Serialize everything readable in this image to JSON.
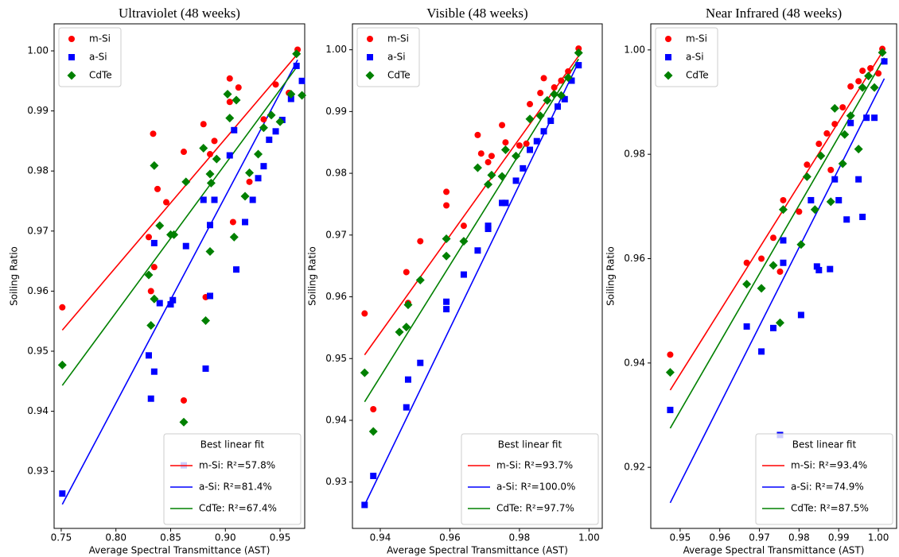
{
  "chart_data": [
    {
      "type": "scatter",
      "title": "Ultraviolet (48 weeks)",
      "xlabel": "Average Spectral Transmittance (AST)",
      "ylabel": "Soiling Ratio",
      "xlim": [
        0.7435,
        0.9725
      ],
      "ylim": [
        0.9205,
        1.0045
      ],
      "xticks": [
        0.75,
        {
          "value": 0.8,
          "label": "0.80"
        },
        0.85,
        {
          "value": 0.9,
          "label": "0.90"
        },
        0.95
      ],
      "yticks": [
        0.93,
        0.94,
        0.95,
        0.96,
        0.97,
        0.98,
        0.99,
        {
          "value": 1.0,
          "label": "1.00"
        }
      ],
      "series": [
        {
          "name": "m-Si",
          "color": "#ff0000",
          "marker": "circle",
          "x": [
            0.751,
            0.83,
            0.832,
            0.834,
            0.835,
            0.838,
            0.846,
            0.862,
            0.862,
            0.88,
            0.882,
            0.886,
            0.89,
            0.904,
            0.904,
            0.907,
            0.912,
            0.922,
            0.935,
            0.946,
            0.958,
            0.966
          ],
          "values": [
            0.9573,
            0.969,
            0.96,
            0.9862,
            0.964,
            0.977,
            0.9748,
            0.9418,
            0.9832,
            0.9878,
            0.959,
            0.9828,
            0.985,
            0.9954,
            0.9915,
            0.9715,
            0.9939,
            0.9782,
            0.9886,
            0.9944,
            0.993,
            1.0002
          ]
        },
        {
          "name": "a-Si",
          "color": "#0000ff",
          "marker": "square",
          "x": [
            0.751,
            0.83,
            0.832,
            0.835,
            0.835,
            0.84,
            0.85,
            0.852,
            0.862,
            0.864,
            0.88,
            0.882,
            0.886,
            0.886,
            0.89,
            0.904,
            0.908,
            0.91,
            0.918,
            0.925,
            0.93,
            0.935,
            0.94,
            0.946,
            0.952,
            0.96,
            0.965,
            0.97
          ],
          "values": [
            0.9263,
            0.9493,
            0.9421,
            0.9466,
            0.968,
            0.958,
            0.9578,
            0.9585,
            0.931,
            0.9675,
            0.9752,
            0.9471,
            0.9592,
            0.971,
            0.9752,
            0.9826,
            0.9868,
            0.9636,
            0.9715,
            0.9752,
            0.9788,
            0.9808,
            0.9852,
            0.9866,
            0.9885,
            0.992,
            0.9975,
            0.995
          ]
        },
        {
          "name": "CdTe",
          "color": "#008000",
          "marker": "diamond",
          "x": [
            0.751,
            0.83,
            0.832,
            0.835,
            0.835,
            0.84,
            0.85,
            0.853,
            0.862,
            0.864,
            0.88,
            0.882,
            0.886,
            0.886,
            0.887,
            0.892,
            0.902,
            0.904,
            0.908,
            0.91,
            0.918,
            0.922,
            0.93,
            0.935,
            0.942,
            0.95,
            0.96,
            0.965,
            0.97
          ],
          "values": [
            0.9477,
            0.9627,
            0.9543,
            0.9809,
            0.9587,
            0.9709,
            0.9694,
            0.9694,
            0.9382,
            0.9782,
            0.9838,
            0.9551,
            0.9666,
            0.9795,
            0.978,
            0.982,
            0.9928,
            0.9888,
            0.969,
            0.9918,
            0.9758,
            0.9797,
            0.9828,
            0.9872,
            0.9893,
            0.9882,
            0.9928,
            0.9995,
            0.9926
          ]
        }
      ],
      "fit": {
        "title": "Best linear fit",
        "lines": [
          {
            "name": "m-Si: R²=57.8%",
            "color": "#ff0000",
            "x": [
              0.751,
              0.966
            ],
            "values": [
              0.9535,
              0.9995
            ]
          },
          {
            "name": "a-Si: R²=81.4%",
            "color": "#0000ff",
            "x": [
              0.751,
              0.966
            ],
            "values": [
              0.9245,
              0.9985
            ]
          },
          {
            "name": "CdTe: R²=67.4%",
            "color": "#008000",
            "x": [
              0.751,
              0.966
            ],
            "values": [
              0.9443,
              0.9975
            ]
          }
        ]
      }
    },
    {
      "type": "scatter",
      "title": "Visible (48 weeks)",
      "xlabel": "Average Spectral Transmittance (AST)",
      "ylabel": "Soiling Ratio",
      "xlim": [
        0.932,
        1.0038
      ],
      "ylim": [
        0.9225,
        1.0042
      ],
      "xticks": [
        0.94,
        0.96,
        0.98,
        {
          "value": 1.0,
          "label": "1.00"
        }
      ],
      "yticks": [
        0.93,
        0.94,
        0.95,
        0.96,
        0.97,
        0.98,
        0.99,
        {
          "value": 1.0,
          "label": "1.00"
        }
      ],
      "series": [
        {
          "name": "m-Si",
          "color": "#ff0000",
          "marker": "circle",
          "x": [
            0.9355,
            0.938,
            0.9475,
            0.948,
            0.9515,
            0.959,
            0.959,
            0.964,
            0.968,
            0.969,
            0.971,
            0.972,
            0.975,
            0.976,
            0.98,
            0.982,
            0.983,
            0.986,
            0.987,
            0.99,
            0.992,
            0.994,
            0.997
          ],
          "values": [
            0.9573,
            0.9418,
            0.964,
            0.959,
            0.969,
            0.977,
            0.9748,
            0.9715,
            0.9862,
            0.9832,
            0.9818,
            0.9828,
            0.9878,
            0.985,
            0.9845,
            0.9848,
            0.9912,
            0.993,
            0.9954,
            0.9939,
            0.995,
            0.9965,
            1.0002
          ]
        },
        {
          "name": "a-Si",
          "color": "#0000ff",
          "marker": "square",
          "x": [
            0.9355,
            0.938,
            0.9475,
            0.948,
            0.9515,
            0.959,
            0.959,
            0.964,
            0.968,
            0.971,
            0.971,
            0.975,
            0.976,
            0.979,
            0.981,
            0.983,
            0.985,
            0.987,
            0.989,
            0.991,
            0.993,
            0.995,
            0.997
          ],
          "values": [
            0.9263,
            0.931,
            0.9421,
            0.9466,
            0.9493,
            0.958,
            0.9592,
            0.9636,
            0.9675,
            0.971,
            0.9715,
            0.9752,
            0.9752,
            0.9788,
            0.9808,
            0.9838,
            0.9852,
            0.9868,
            0.9885,
            0.9908,
            0.992,
            0.995,
            0.9975
          ]
        },
        {
          "name": "CdTe",
          "color": "#008000",
          "marker": "diamond",
          "x": [
            0.9355,
            0.938,
            0.9455,
            0.9475,
            0.948,
            0.9515,
            0.959,
            0.959,
            0.964,
            0.968,
            0.971,
            0.972,
            0.975,
            0.976,
            0.979,
            0.983,
            0.986,
            0.988,
            0.99,
            0.992,
            0.994,
            0.997
          ],
          "values": [
            0.9477,
            0.9382,
            0.9543,
            0.9551,
            0.9587,
            0.9627,
            0.9666,
            0.9694,
            0.969,
            0.9809,
            0.9782,
            0.9797,
            0.9795,
            0.9838,
            0.9828,
            0.9888,
            0.9893,
            0.9918,
            0.9928,
            0.9926,
            0.9955,
            0.9995
          ]
        }
      ],
      "fit": {
        "title": "Best linear fit",
        "lines": [
          {
            "name": "m-Si: R²=93.7%",
            "color": "#ff0000",
            "x": [
              0.9355,
              0.997
            ],
            "values": [
              0.9506,
              0.999
            ]
          },
          {
            "name": "a-Si: R²=100.0%",
            "color": "#0000ff",
            "x": [
              0.9355,
              0.997
            ],
            "values": [
              0.9263,
              0.998
            ]
          },
          {
            "name": "CdTe: R²=97.7%",
            "color": "#008000",
            "x": [
              0.9355,
              0.997
            ],
            "values": [
              0.943,
              0.9985
            ]
          }
        ]
      }
    },
    {
      "type": "scatter",
      "title": "Near Infrared (48 weeks)",
      "xlabel": "Average Spectral Transmittance (AST)",
      "ylabel": "Soiling Ratio",
      "xlim": [
        0.9426,
        1.0046
      ],
      "ylim": [
        0.9083,
        1.005
      ],
      "xticks": [
        0.95,
        0.96,
        0.97,
        0.98,
        0.99,
        {
          "value": 1.0,
          "label": "1.00"
        }
      ],
      "yticks": [
        0.92,
        0.94,
        0.96,
        0.98,
        {
          "value": 1.0,
          "label": "1.00"
        }
      ],
      "series": [
        {
          "name": "m-Si",
          "color": "#ff0000",
          "marker": "circle",
          "x": [
            0.9475,
            0.9668,
            0.9705,
            0.9735,
            0.9752,
            0.976,
            0.98,
            0.982,
            0.985,
            0.987,
            0.988,
            0.989,
            0.991,
            0.993,
            0.995,
            0.996,
            0.998,
            1.0,
            1.001
          ],
          "values": [
            0.9416,
            0.9592,
            0.96,
            0.964,
            0.9575,
            0.9712,
            0.969,
            0.978,
            0.982,
            0.984,
            0.977,
            0.9858,
            0.989,
            0.993,
            0.994,
            0.996,
            0.9965,
            0.9955,
            1.0002
          ]
        },
        {
          "name": "a-Si",
          "color": "#0000ff",
          "marker": "square",
          "x": [
            0.9475,
            0.9668,
            0.9705,
            0.9735,
            0.9752,
            0.976,
            0.976,
            0.9805,
            0.983,
            0.9845,
            0.985,
            0.9878,
            0.989,
            0.99,
            0.992,
            0.993,
            0.995,
            0.996,
            0.997,
            0.999,
            1.0015
          ],
          "values": [
            0.931,
            0.947,
            0.9422,
            0.9467,
            0.9262,
            0.9635,
            0.9592,
            0.9492,
            0.9712,
            0.9585,
            0.9578,
            0.958,
            0.9752,
            0.9712,
            0.9675,
            0.986,
            0.9752,
            0.968,
            0.987,
            0.987,
            0.9978
          ]
        },
        {
          "name": "CdTe",
          "color": "#008000",
          "marker": "diamond",
          "x": [
            0.9475,
            0.9668,
            0.9705,
            0.9735,
            0.9752,
            0.976,
            0.9805,
            0.982,
            0.984,
            0.9855,
            0.988,
            0.989,
            0.991,
            0.9915,
            0.993,
            0.995,
            0.996,
            0.9975,
            0.999,
            1.001
          ],
          "values": [
            0.9382,
            0.9551,
            0.9543,
            0.9587,
            0.9477,
            0.9694,
            0.9627,
            0.9757,
            0.9694,
            0.9797,
            0.9709,
            0.9888,
            0.9782,
            0.9838,
            0.9874,
            0.981,
            0.9928,
            0.995,
            0.9928,
            0.9995
          ]
        }
      ],
      "fit": {
        "title": "Best linear fit",
        "lines": [
          {
            "name": "m-Si: R²=93.4%",
            "color": "#ff0000",
            "x": [
              0.9475,
              1.0015
            ],
            "values": [
              0.9348,
              1.0002
            ]
          },
          {
            "name": "a-Si: R²=74.9%",
            "color": "#0000ff",
            "x": [
              0.9475,
              1.0015
            ],
            "values": [
              0.9132,
              0.9945
            ]
          },
          {
            "name": "CdTe: R²=87.5%",
            "color": "#008000",
            "x": [
              0.9475,
              1.0015
            ],
            "values": [
              0.9275,
              0.9985
            ]
          }
        ]
      }
    }
  ]
}
